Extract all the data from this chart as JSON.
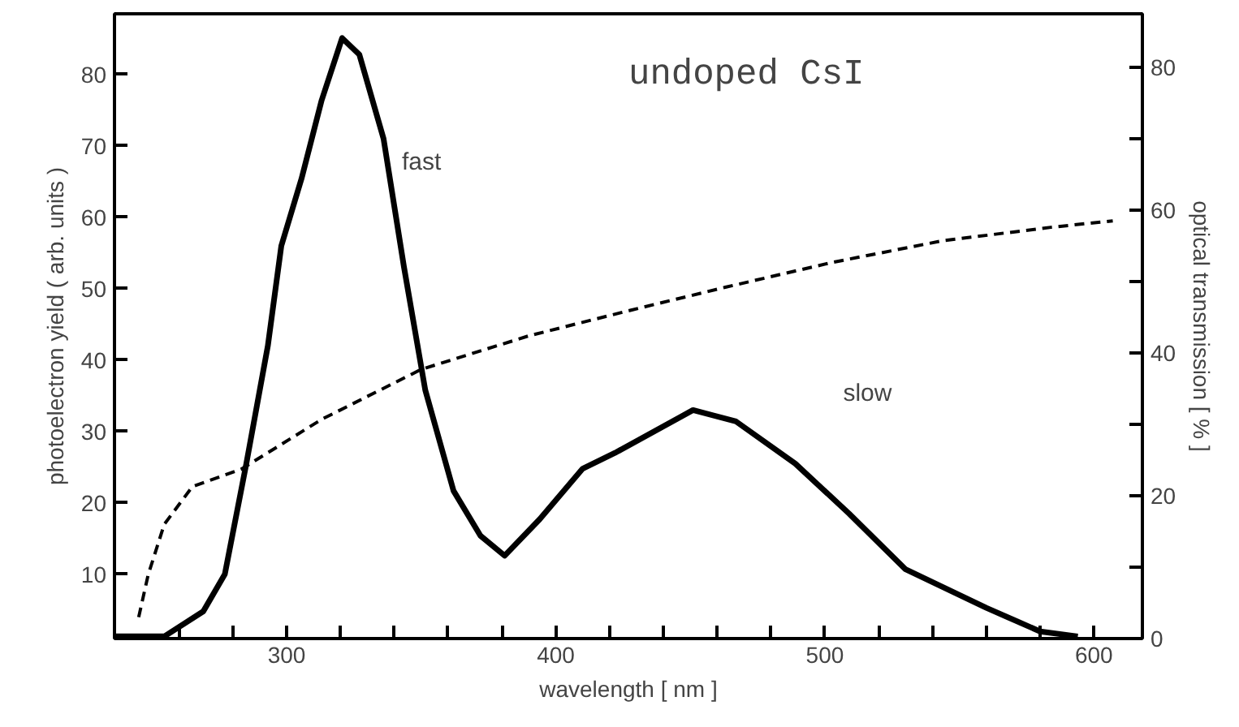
{
  "chart_data": {
    "type": "line",
    "title": "undoped CsI",
    "xlabel": "wavelength [ nm ]",
    "ylabel": "photoelectron yield ( arb. units )",
    "y2label": "optical transmission [ % ]",
    "xlim": [
      236,
      618
    ],
    "ylim": [
      1,
      88.5
    ],
    "y2lim": [
      0,
      87.5
    ],
    "xticks": [
      {
        "value": 260,
        "label": null
      },
      {
        "value": 280,
        "label": null
      },
      300,
      {
        "value": 320,
        "label": null
      },
      {
        "value": 340,
        "label": null
      },
      {
        "value": 360,
        "label": null
      },
      {
        "value": 380,
        "label": null
      },
      400,
      {
        "value": 420,
        "label": null
      },
      {
        "value": 440,
        "label": null
      },
      {
        "value": 460,
        "label": null
      },
      {
        "value": 480,
        "label": null
      },
      500,
      {
        "value": 520,
        "label": null
      },
      {
        "value": 540,
        "label": null
      },
      {
        "value": 560,
        "label": null
      },
      {
        "value": 580,
        "label": null
      },
      600
    ],
    "yticks": [
      10,
      20,
      30,
      40,
      50,
      60,
      70,
      80
    ],
    "y2ticks": [
      0,
      {
        "value": 10,
        "label": null
      },
      20,
      {
        "value": 30,
        "label": null
      },
      40,
      {
        "value": 50,
        "label": null
      },
      60,
      {
        "value": 70,
        "label": null
      },
      80
    ],
    "grid": false,
    "marker": "none",
    "series": [
      {
        "color": "#000000",
        "line_style": "solid",
        "x": [
          236,
          245,
          254.5,
          269,
          277,
          285,
          293,
          298,
          305.5,
          313,
          320.6,
          327,
          336,
          343.6,
          351.5,
          362,
          372,
          381,
          394,
          410,
          422,
          451,
          467,
          489,
          509,
          530,
          560,
          580,
          594
        ],
        "values": [
          1.3,
          1.3,
          1.3,
          4.8,
          10,
          25.5,
          42,
          56,
          65.4,
          76.4,
          85.1,
          82.8,
          71,
          53,
          35.8,
          21.7,
          15.4,
          12.6,
          17.7,
          24.8,
          27,
          33,
          31.4,
          25.5,
          18.5,
          10.7,
          5.3,
          2,
          1.3
        ]
      },
      {
        "color": "#000000",
        "line_style": "dashed",
        "axis": "y2",
        "x": [
          245,
          248.5,
          254.5,
          265,
          283,
          313,
          350,
          390,
          428,
          463,
          503,
          543.6,
          584,
          607
        ],
        "values": [
          3,
          8.9,
          16,
          21.3,
          23.7,
          30.7,
          37.7,
          42.4,
          46,
          49.2,
          52.7,
          55.7,
          57.6,
          58.5
        ]
      }
    ],
    "annotations": [
      "fast",
      "slow"
    ]
  }
}
